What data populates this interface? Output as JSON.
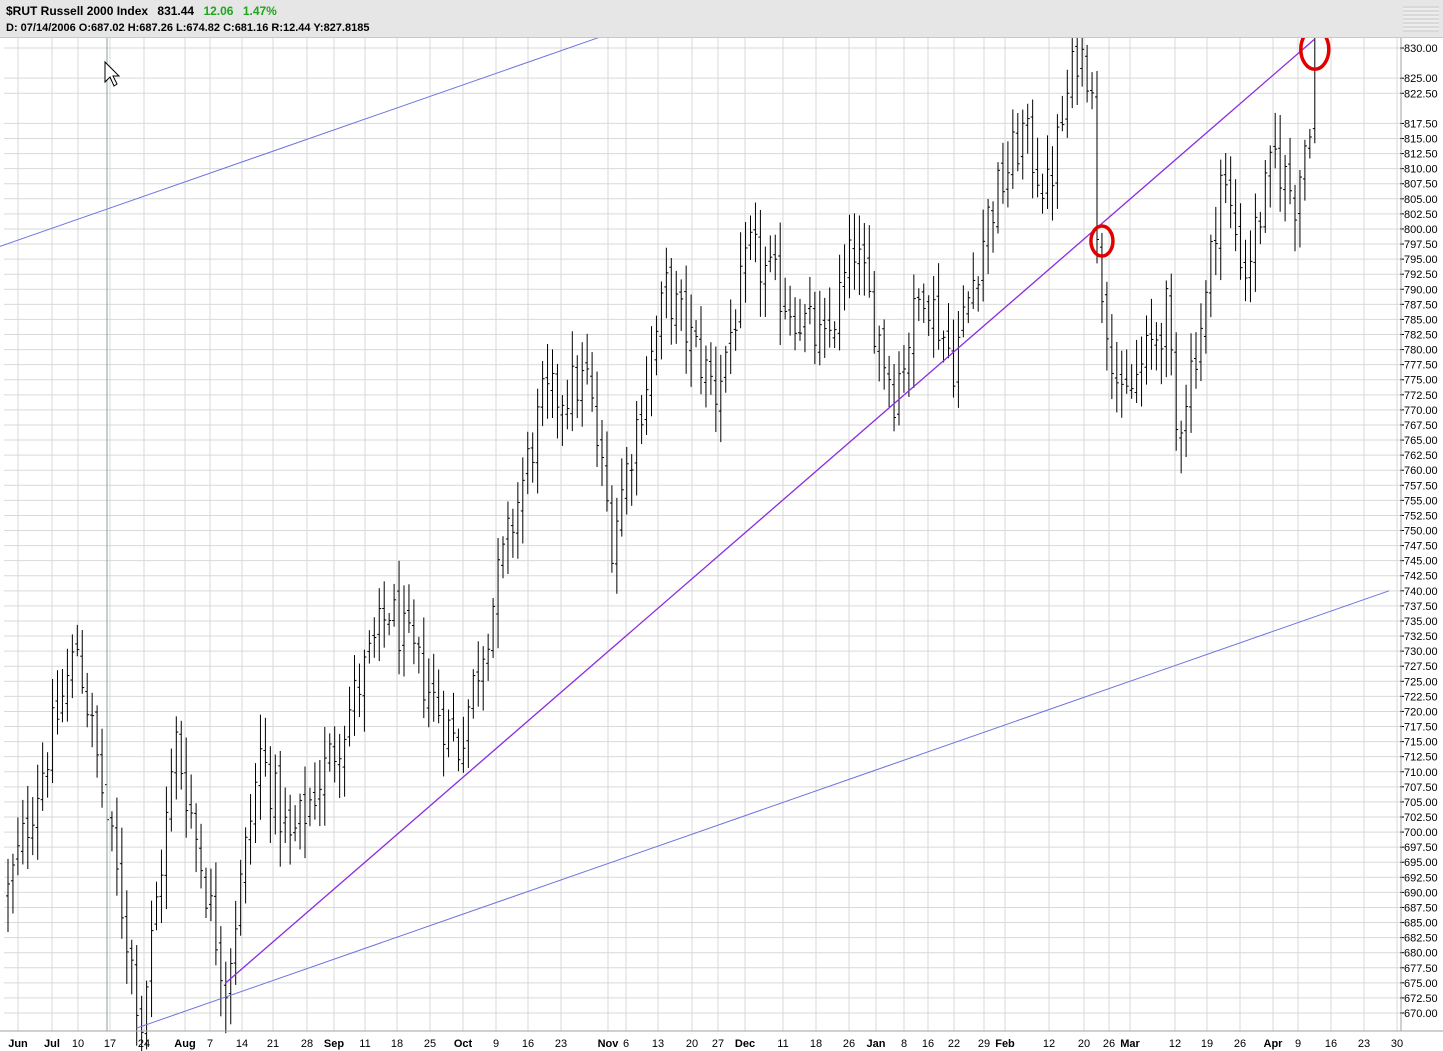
{
  "header": {
    "symbol_title": "$RUT Russell 2000 Index",
    "last": "831.44",
    "change": "12.06",
    "change_pct": "1.47%",
    "ohlc_text": "D: 07/14/2006 O:687.02 H:687.26 L:674.82 C:681.16 R:12.44 Y:827.8185"
  },
  "colors": {
    "bars": "#000000",
    "grid": "#d9d9d9",
    "channel_line": "#6b73e0",
    "trend_line": "#8a2be2",
    "highlight_circle": "#e00000",
    "cursor_line": "#8aa0a0",
    "change_up": "#1fa51f"
  },
  "chart_data": {
    "type": "ohlc",
    "title": "$RUT Russell 2000 Index",
    "ylim": [
      667.5,
      832.5
    ],
    "y_ticks": [
      "670.00",
      "672.50",
      "675.00",
      "677.50",
      "680.00",
      "682.50",
      "685.00",
      "687.50",
      "690.00",
      "692.50",
      "695.00",
      "697.50",
      "700.00",
      "702.50",
      "705.00",
      "707.50",
      "710.00",
      "712.50",
      "715.00",
      "717.50",
      "720.00",
      "722.50",
      "725.00",
      "727.50",
      "730.00",
      "732.50",
      "735.00",
      "737.50",
      "740.00",
      "742.50",
      "745.00",
      "747.50",
      "750.00",
      "752.50",
      "755.00",
      "757.50",
      "760.00",
      "762.50",
      "765.00",
      "767.50",
      "770.00",
      "772.50",
      "775.00",
      "777.50",
      "780.00",
      "782.50",
      "785.00",
      "787.50",
      "790.00",
      "792.50",
      "795.00",
      "797.50",
      "800.00",
      "802.50",
      "805.00",
      "807.50",
      "810.00",
      "812.50",
      "815.00",
      "817.50",
      "822.50",
      "825.00",
      "830.00"
    ],
    "x_ticks": [
      {
        "label": "Jun",
        "month": true
      },
      {
        "label": "Jul",
        "month": true
      },
      {
        "label": "10"
      },
      {
        "label": "17"
      },
      {
        "label": "24"
      },
      {
        "label": "Aug",
        "month": true
      },
      {
        "label": "7"
      },
      {
        "label": "14"
      },
      {
        "label": "21"
      },
      {
        "label": "28"
      },
      {
        "label": "Sep",
        "month": true
      },
      {
        "label": "11"
      },
      {
        "label": "18"
      },
      {
        "label": "25"
      },
      {
        "label": "Oct",
        "month": true
      },
      {
        "label": "9"
      },
      {
        "label": "16"
      },
      {
        "label": "23"
      },
      {
        "label": "Nov",
        "month": true
      },
      {
        "label": "6"
      },
      {
        "label": "13"
      },
      {
        "label": "20"
      },
      {
        "label": "27"
      },
      {
        "label": "Dec",
        "month": true
      },
      {
        "label": "11"
      },
      {
        "label": "18"
      },
      {
        "label": "26"
      },
      {
        "label": "Jan",
        "month": true
      },
      {
        "label": "8"
      },
      {
        "label": "16"
      },
      {
        "label": "22"
      },
      {
        "label": "29"
      },
      {
        "label": "Feb",
        "month": true
      },
      {
        "label": "12"
      },
      {
        "label": "20"
      },
      {
        "label": "26"
      },
      {
        "label": "Mar",
        "month": true
      },
      {
        "label": "12"
      },
      {
        "label": "19"
      },
      {
        "label": "26"
      },
      {
        "label": "Apr",
        "month": true
      },
      {
        "label": "9"
      },
      {
        "label": "16"
      },
      {
        "label": "23"
      },
      {
        "label": "30"
      }
    ],
    "key_points": [
      {
        "session": 0,
        "price": 690.0
      },
      {
        "session": 14,
        "price": 731.0
      },
      {
        "session": 27,
        "price": 668.5
      },
      {
        "session": 34,
        "price": 715.0
      },
      {
        "session": 44,
        "price": 675.0
      },
      {
        "session": 51,
        "price": 713.0
      },
      {
        "session": 57,
        "price": 698.0
      },
      {
        "session": 66,
        "price": 714.0
      },
      {
        "session": 77,
        "price": 737.0
      },
      {
        "session": 86,
        "price": 722.0
      },
      {
        "session": 91,
        "price": 714.0
      },
      {
        "session": 100,
        "price": 745.0
      },
      {
        "session": 108,
        "price": 771.0
      },
      {
        "session": 117,
        "price": 775.0
      },
      {
        "session": 122,
        "price": 749.0
      },
      {
        "session": 133,
        "price": 790.0
      },
      {
        "session": 143,
        "price": 773.0
      },
      {
        "session": 150,
        "price": 796.0
      },
      {
        "session": 165,
        "price": 780.0
      },
      {
        "session": 171,
        "price": 797.0
      },
      {
        "session": 179,
        "price": 773.0
      },
      {
        "session": 185,
        "price": 791.0
      },
      {
        "session": 191,
        "price": 778.0
      },
      {
        "session": 198,
        "price": 802.0
      },
      {
        "session": 205,
        "price": 816.0
      },
      {
        "session": 210,
        "price": 806.0
      },
      {
        "session": 216,
        "price": 829.5
      },
      {
        "session": 219,
        "price": 826.0
      },
      {
        "session": 220,
        "price": 796.0
      },
      {
        "session": 225,
        "price": 770.0
      },
      {
        "session": 229,
        "price": 777.0
      },
      {
        "session": 234,
        "price": 786.0
      },
      {
        "session": 236,
        "price": 766.0
      },
      {
        "session": 242,
        "price": 788.0
      },
      {
        "session": 245,
        "price": 809.0
      },
      {
        "session": 250,
        "price": 793.0
      },
      {
        "session": 256,
        "price": 812.0
      },
      {
        "session": 260,
        "price": 805.0
      },
      {
        "session": 263,
        "price": 819.0
      },
      {
        "session": 264,
        "price": 831.44
      }
    ],
    "sessions": 265,
    "trendlines": [
      {
        "name": "upper-channel",
        "from": {
          "session": -2,
          "price": 797.0
        },
        "to": {
          "session": 122,
          "price": 832.5
        }
      },
      {
        "name": "lower-channel",
        "from": {
          "session": 26,
          "price": 667.5
        },
        "to": {
          "session": 279,
          "price": 740.0
        }
      },
      {
        "name": "rising-trend",
        "from": {
          "session": 44,
          "price": 675.0
        },
        "to": {
          "session": 264,
          "price": 831.5
        }
      }
    ],
    "highlights": [
      {
        "name": "breakdown-point",
        "session": 221,
        "price": 798.0
      },
      {
        "name": "retest-point",
        "session": 264,
        "price": 829.8
      }
    ],
    "cursor_session": 20,
    "grid": true,
    "legend": "none"
  }
}
